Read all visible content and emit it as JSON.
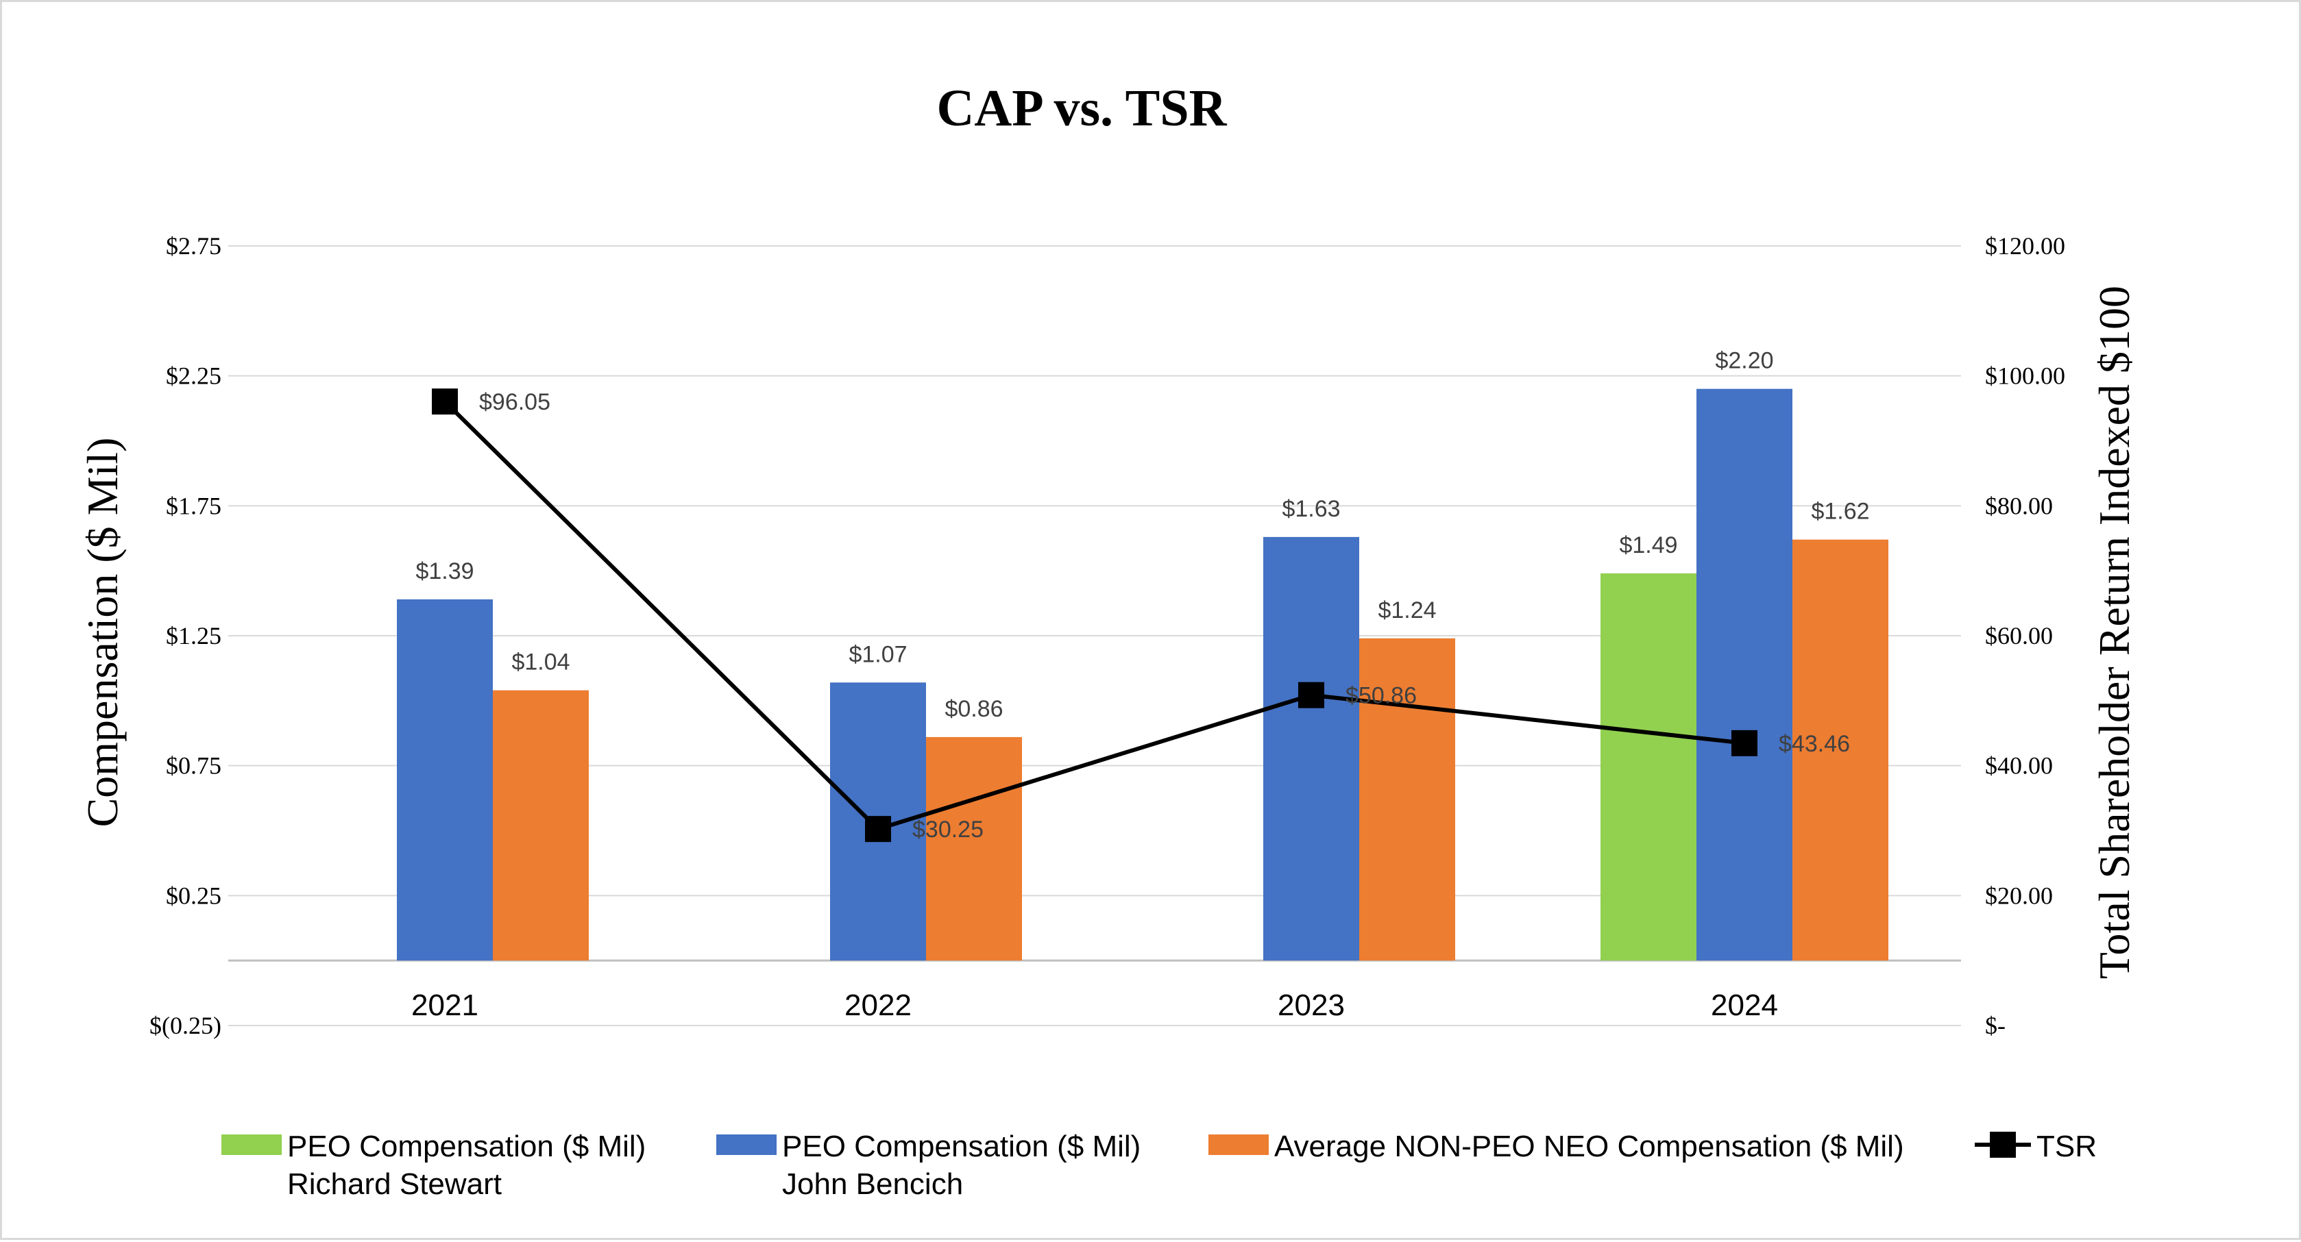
{
  "chart_data": {
    "type": "bar",
    "title": "CAP vs. TSR",
    "categories": [
      "2021",
      "2022",
      "2023",
      "2024"
    ],
    "ylabel": "Compensation ($ Mil)",
    "y2label": "Total Shareholder Return Indexed $100",
    "ylim": [
      -0.25,
      2.75
    ],
    "y2lim": [
      0,
      120
    ],
    "yticks": [
      "$2.75",
      "$2.25",
      "$1.75",
      "$1.25",
      "$0.75",
      "$0.25",
      "$(0.25)"
    ],
    "y2ticks": [
      "$120.00",
      "$100.00",
      "$80.00",
      "$60.00",
      "$40.00",
      "$20.00",
      "$-"
    ],
    "legend_position": "bottom",
    "series": [
      {
        "name": "PEO Compensation ($ Mil) Richard Stewart",
        "legend_line1": "PEO Compensation ($ Mil)",
        "legend_line2": "Richard Stewart",
        "color": "#92d050",
        "values": [
          null,
          null,
          null,
          1.49
        ],
        "labels": [
          "",
          "",
          "",
          "$1.49"
        ]
      },
      {
        "name": "PEO Compensation ($ Mil) John Bencich",
        "legend_line1": "PEO Compensation ($ Mil)",
        "legend_line2": "John Bencich",
        "color": "#4472c4",
        "values": [
          1.39,
          1.07,
          1.63,
          2.2
        ],
        "labels": [
          "$1.39",
          "$1.07",
          "$1.63",
          "$2.20"
        ]
      },
      {
        "name": "Average NON-PEO NEO Compensation ($ Mil)",
        "legend_line1": "Average NON-PEO NEO Compensation ($ Mil)",
        "legend_line2": "",
        "color": "#ed7d31",
        "values": [
          1.04,
          0.86,
          1.24,
          1.62
        ],
        "labels": [
          "$1.04",
          "$0.86",
          "$1.24",
          "$1.62"
        ]
      }
    ],
    "line_series": {
      "name": "TSR",
      "axis": "secondary",
      "color": "#000000",
      "values": [
        96.05,
        30.25,
        50.86,
        43.46
      ],
      "labels": [
        "$96.05",
        "$30.25",
        "$50.86",
        "$43.46"
      ]
    }
  }
}
